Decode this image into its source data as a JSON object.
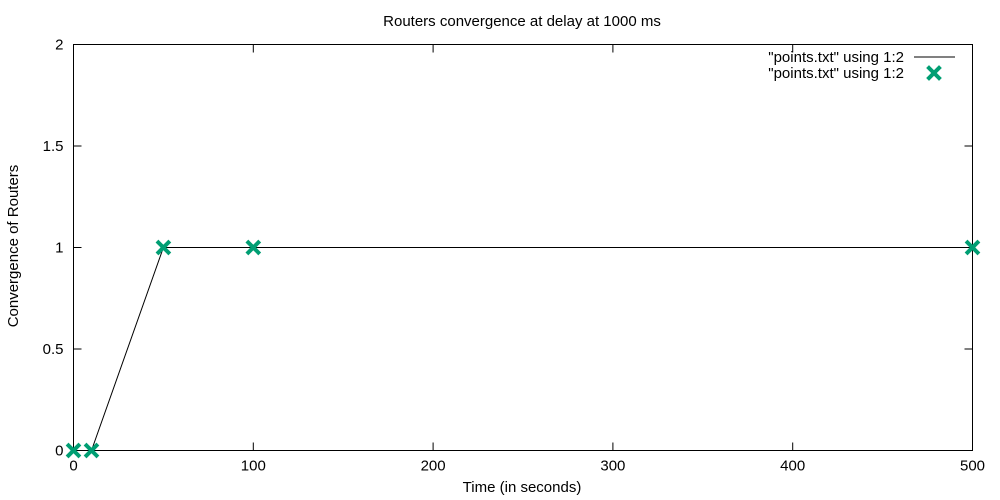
{
  "chart_data": {
    "type": "line",
    "title": "Routers convergence at delay at 1000 ms",
    "xlabel": "Time (in seconds)",
    "ylabel": "Convergence of Routers",
    "xlim": [
      0,
      500
    ],
    "ylim": [
      0,
      2
    ],
    "xticks": [
      0,
      100,
      200,
      300,
      400,
      500
    ],
    "yticks": [
      0,
      0.5,
      1,
      1.5,
      2
    ],
    "xtick_labels": [
      "0",
      "100",
      "200",
      "300",
      "400",
      "500"
    ],
    "ytick_labels": [
      "0",
      "0.5",
      "1",
      "1.5",
      "2"
    ],
    "grid": false,
    "legend_position": "top-right",
    "series": [
      {
        "name": "\"points.txt\" using 1:2",
        "style": "line",
        "color": "#000000",
        "x": [
          0,
          10,
          50,
          100,
          500
        ],
        "y": [
          0,
          0,
          1,
          1,
          1
        ]
      },
      {
        "name": "\"points.txt\" using 1:2",
        "style": "points",
        "color": "#009e73",
        "x": [
          0,
          10,
          50,
          100,
          500
        ],
        "y": [
          0,
          0,
          1,
          1,
          1
        ]
      }
    ]
  }
}
